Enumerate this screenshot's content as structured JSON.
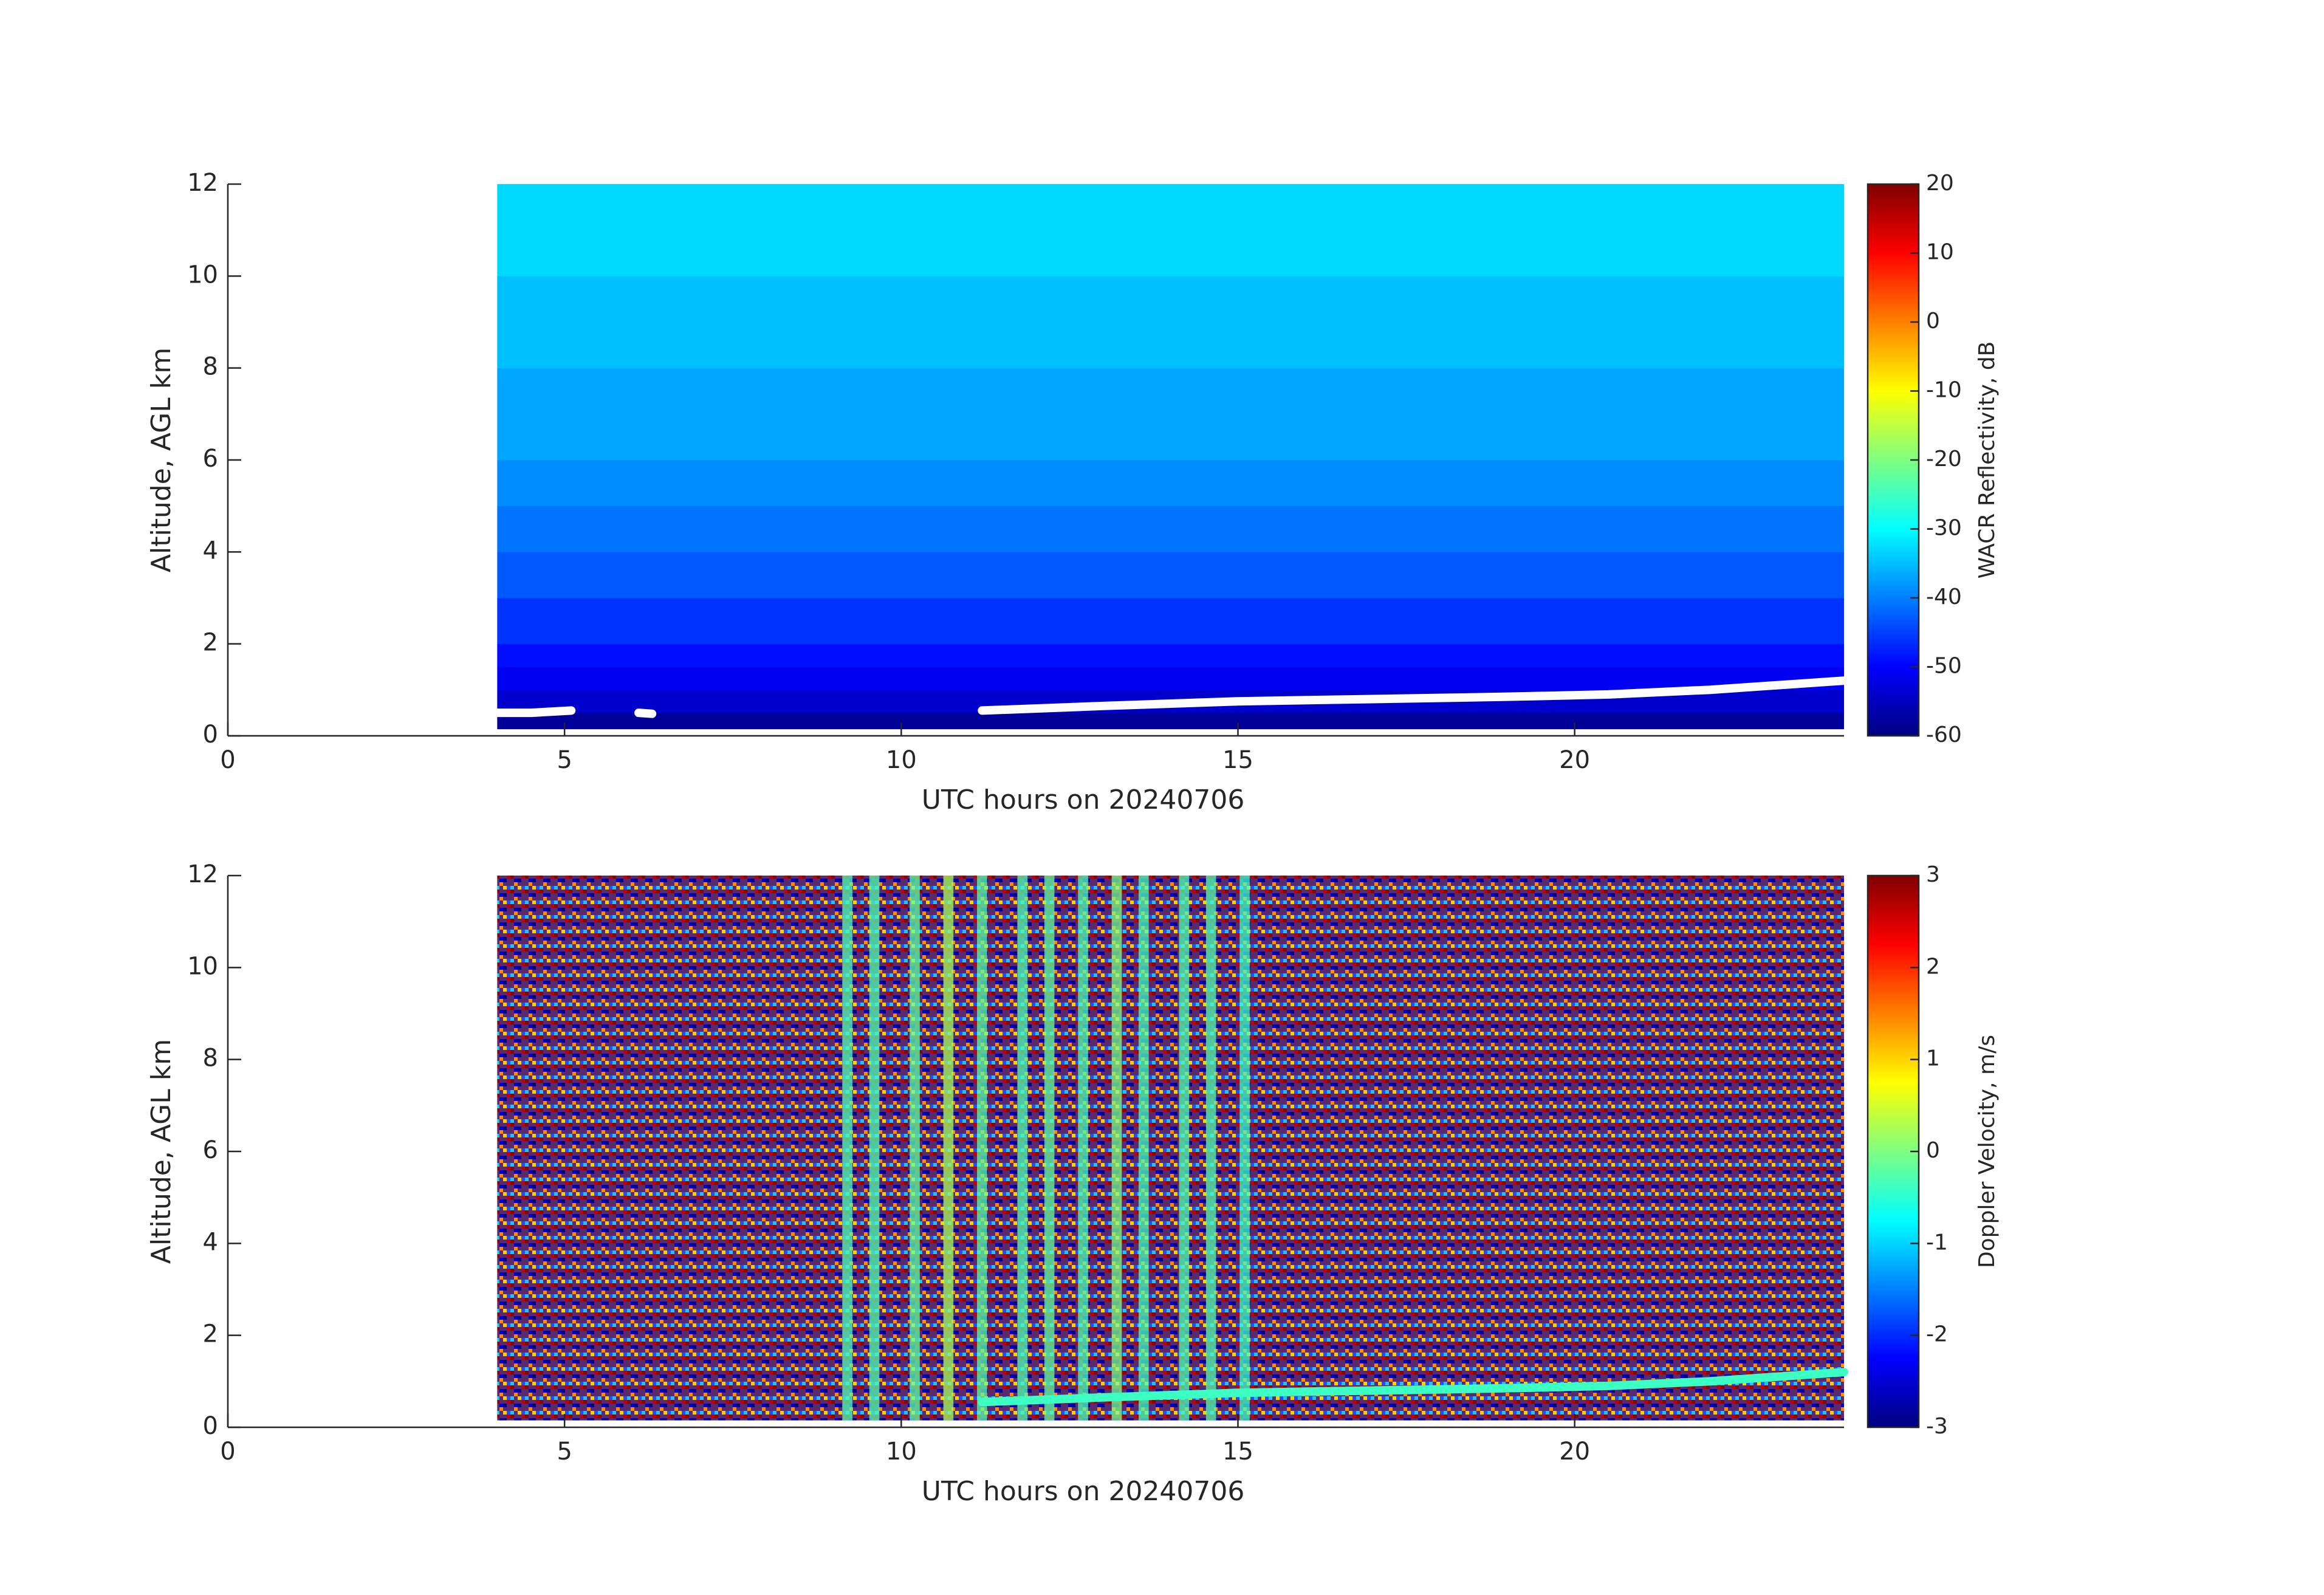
{
  "chart_data": [
    {
      "type": "heatmap",
      "xlabel": "UTC hours on 20240706",
      "ylabel": "Altitude, AGL km",
      "xlim": [
        0,
        24
      ],
      "xticks": [
        0,
        5,
        10,
        15,
        20
      ],
      "ylim": [
        0,
        12
      ],
      "yticks": [
        0,
        2,
        4,
        6,
        8,
        10,
        12
      ],
      "colorbar_label": "WACR Reflectivity, dB",
      "clim": [
        -60,
        20
      ],
      "cticks": [
        -60,
        -50,
        -40,
        -30,
        -20,
        -10,
        0,
        10,
        20
      ],
      "colormap": "jet",
      "time_range": [
        4,
        24
      ],
      "profile": {
        "altitude_edges": [
          0.15,
          0.5,
          1,
          1.5,
          2,
          3,
          4,
          5,
          6,
          8,
          10,
          12
        ],
        "values": [
          -58,
          -54,
          -51,
          -49,
          -46,
          -43,
          -41,
          -39,
          -37,
          -35,
          -33
        ]
      },
      "layer": {
        "color": "#ffffff",
        "x": [
          4.0,
          4.5,
          5.1,
          5.6,
          6.1,
          6.3,
          6.8,
          11.2,
          13,
          15,
          17,
          19,
          20.5,
          22,
          24
        ],
        "y": [
          0.5,
          0.5,
          0.55,
          null,
          0.5,
          0.48,
          null,
          0.55,
          0.65,
          0.75,
          0.8,
          0.85,
          0.9,
          1.0,
          1.2
        ]
      }
    },
    {
      "type": "heatmap",
      "xlabel": "UTC hours on 20240706",
      "ylabel": "Altitude, AGL km",
      "xlim": [
        0,
        24
      ],
      "xticks": [
        0,
        5,
        10,
        15,
        20
      ],
      "ylim": [
        0,
        12
      ],
      "yticks": [
        0,
        2,
        4,
        6,
        8,
        10,
        12
      ],
      "colorbar_label": "Doppler Velocity, m/s",
      "clim": [
        -3,
        3
      ],
      "cticks": [
        -3,
        -2,
        -1,
        0,
        1,
        2,
        3
      ],
      "colormap": "jet",
      "time_range": [
        4,
        24
      ],
      "bottom_altitude": 0.15,
      "stripes": {
        "width": 0.15,
        "x": [
          9.2,
          9.6,
          10.2,
          10.7,
          11.2,
          11.8,
          12.2,
          12.7,
          13.2,
          13.6,
          14.2,
          14.6,
          15.1
        ],
        "values": [
          -0.3,
          -0.3,
          -0.2,
          0.2,
          -0.2,
          -0.3,
          -0.2,
          -0.3,
          0.0,
          -0.3,
          -0.3,
          -0.3,
          -0.4
        ]
      },
      "layer": {
        "value": -0.4,
        "x": [
          11.2,
          13,
          15,
          17,
          19,
          20.5,
          22,
          24
        ],
        "y": [
          0.55,
          0.65,
          0.75,
          0.8,
          0.85,
          0.9,
          1.0,
          1.2
        ]
      }
    }
  ]
}
